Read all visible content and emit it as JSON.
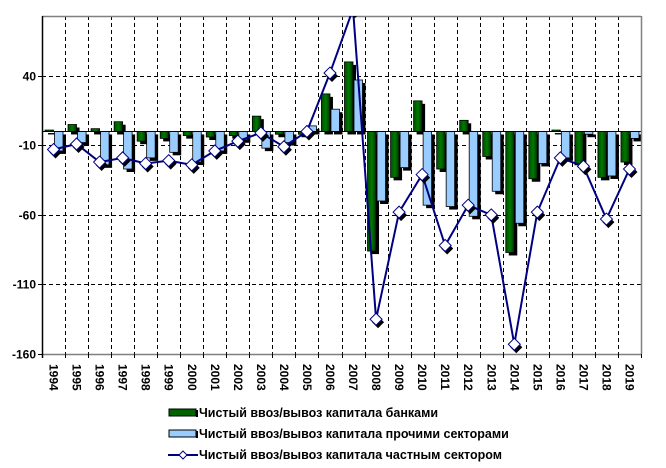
{
  "chart_data": {
    "type": "bar",
    "title": "",
    "xlabel": "",
    "ylabel": "",
    "ylim": [
      -160,
      83
    ],
    "yticks": [
      40,
      -10,
      -60,
      -110,
      -160
    ],
    "grid": true,
    "legend_position": "bottom",
    "categories": [
      "1994",
      "1995",
      "1996",
      "1997",
      "1998",
      "1999",
      "2000",
      "2001",
      "2002",
      "2003",
      "2004",
      "2005",
      "2006",
      "2007",
      "2008",
      "2009",
      "2010",
      "2011",
      "2012",
      "2013",
      "2014",
      "2015",
      "2016",
      "2017",
      "2018",
      "2019"
    ],
    "series": [
      {
        "name": "Чистый ввоз/вывоз капитала банками",
        "type": "bar",
        "color": "#006400",
        "values": [
          1,
          5,
          2,
          7,
          -7,
          -5,
          -3,
          -4,
          -3,
          11,
          -2,
          -2,
          27,
          50,
          -86,
          -33,
          22,
          -27,
          8,
          -18,
          -87,
          -34,
          1,
          -24,
          -33,
          -22
        ]
      },
      {
        "name": "Чистый ввоз/вывоз капитала прочими секторами",
        "type": "bar",
        "color": "#99CCFF",
        "values": [
          -14,
          -8,
          -24,
          -27,
          -19,
          -15,
          -22,
          -14,
          -6,
          -12,
          -8,
          4,
          16,
          37,
          -50,
          -26,
          -53,
          -54,
          -61,
          -43,
          -66,
          -23,
          -19,
          -2,
          -32,
          -5
        ]
      },
      {
        "name": "Чистый ввоз/вывоз капитала частным сектором",
        "type": "line",
        "color": "#000080",
        "values": [
          -13,
          -9,
          -22,
          -19,
          -23,
          -21,
          -24,
          -14,
          -7,
          -1,
          -11,
          0,
          42,
          88,
          -135,
          -58,
          -31,
          -82,
          -53,
          -60,
          -153,
          -58,
          -19,
          -25,
          -63,
          -27
        ]
      }
    ]
  }
}
